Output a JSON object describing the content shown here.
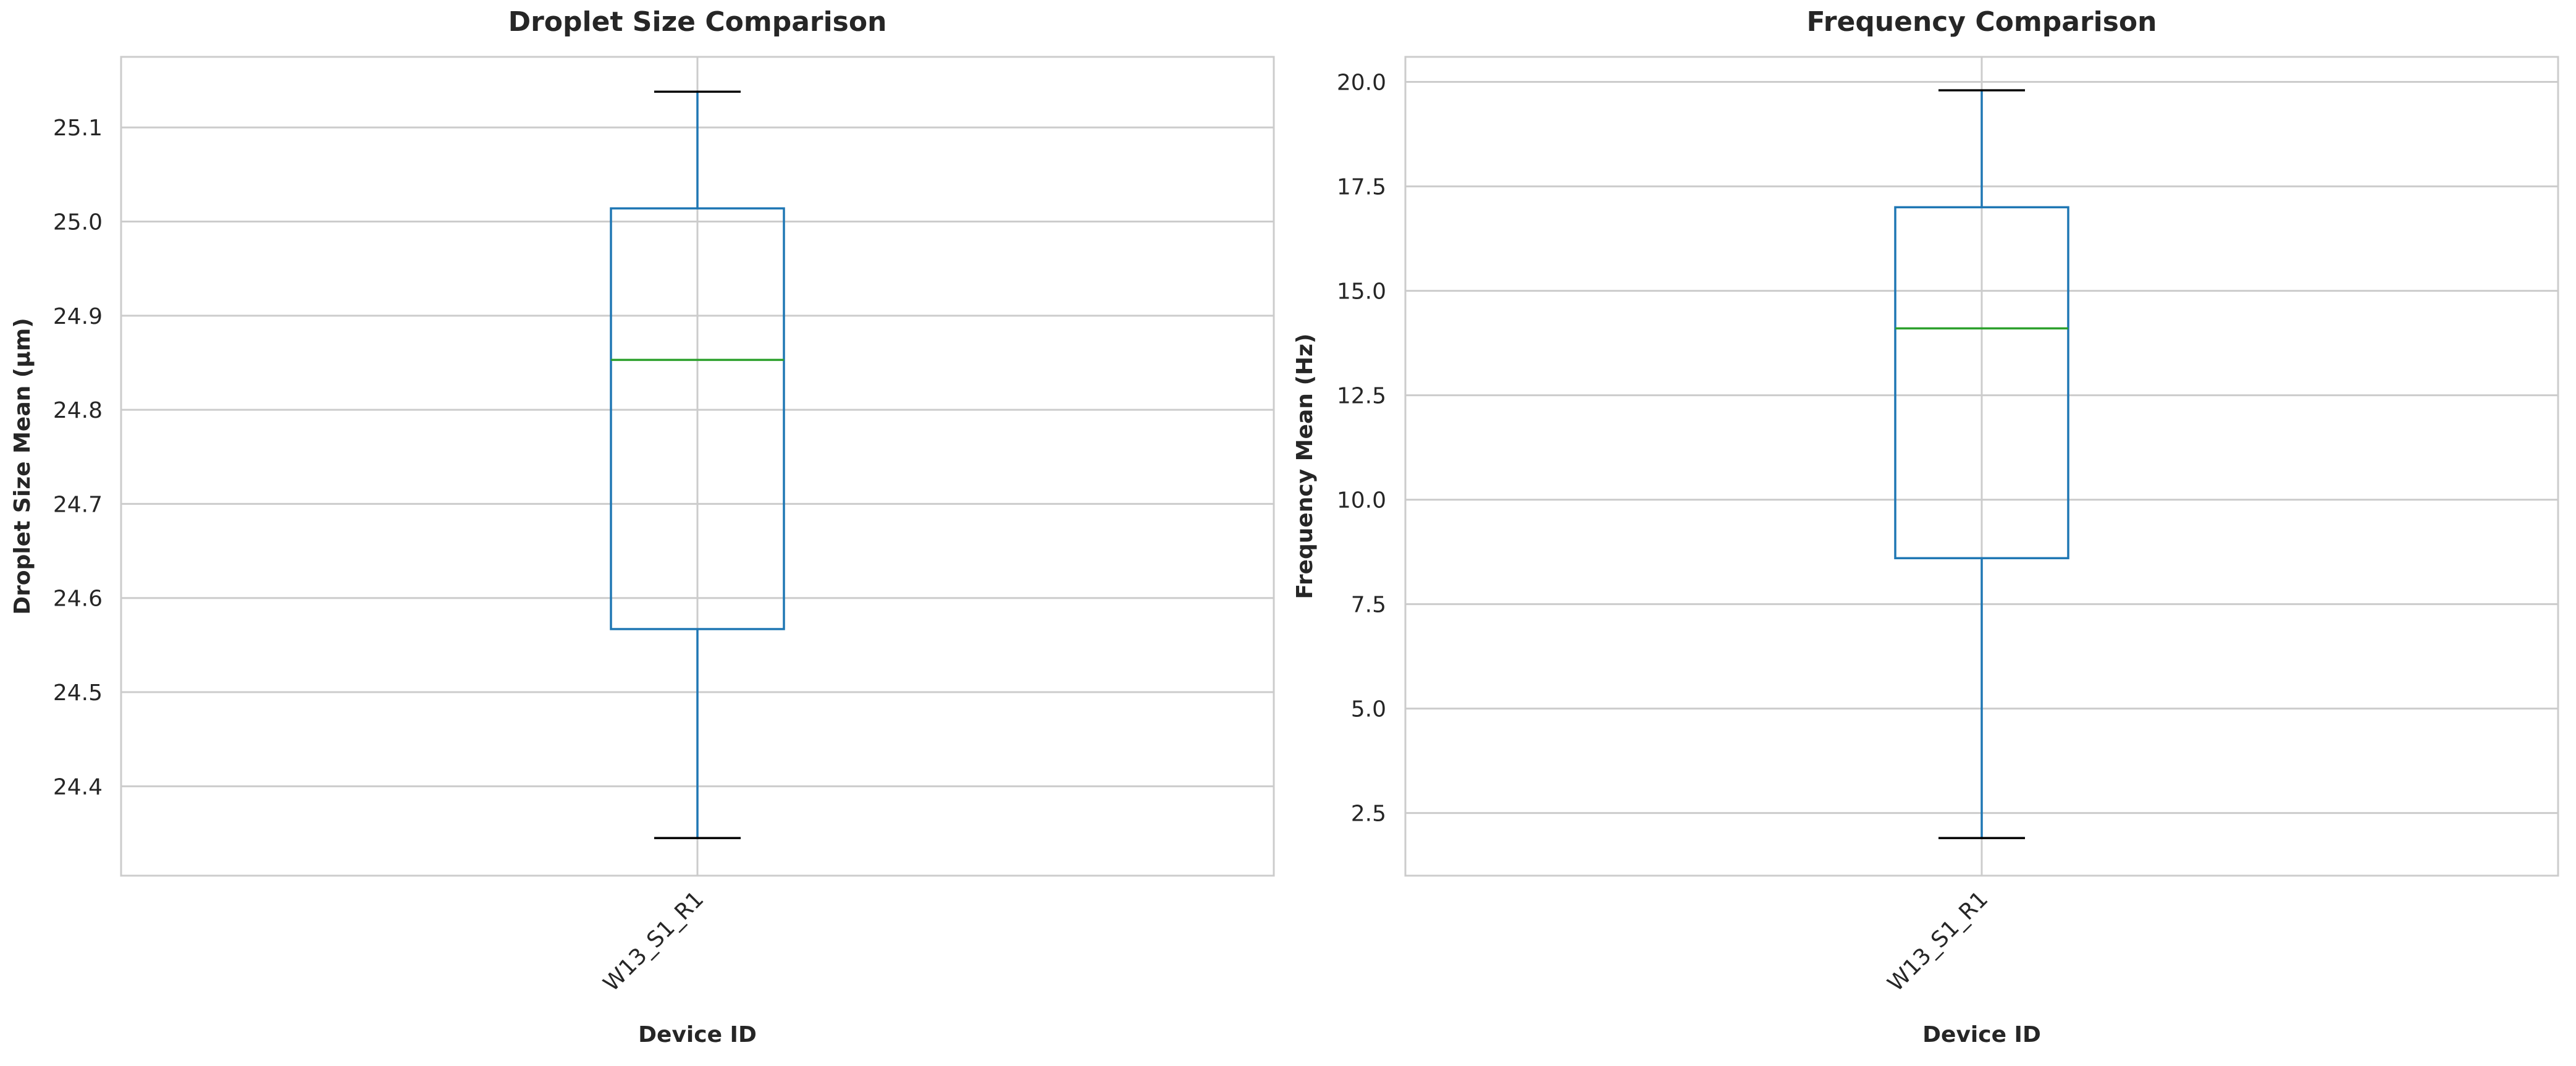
{
  "chart_data": [
    {
      "type": "box",
      "title": "Droplet Size Comparison",
      "xlabel": "Device ID",
      "ylabel": "Droplet Size Mean (µm)",
      "categories": [
        "W13_S1_R1"
      ],
      "boxes": [
        {
          "category": "W13_S1_R1",
          "whisker_low": 24.345,
          "q1": 24.567,
          "median": 24.853,
          "q3": 25.014,
          "whisker_high": 25.138
        }
      ],
      "ylim": [
        24.305,
        25.175
      ],
      "yticks": [
        "24.4",
        "24.5",
        "24.6",
        "24.7",
        "24.8",
        "24.9",
        "25.0",
        "25.1"
      ],
      "grid": true
    },
    {
      "type": "box",
      "title": "Frequency Comparison",
      "xlabel": "Device ID",
      "ylabel": "Frequency Mean (Hz)",
      "categories": [
        "W13_S1_R1"
      ],
      "boxes": [
        {
          "category": "W13_S1_R1",
          "whisker_low": 1.9,
          "q1": 8.6,
          "median": 14.1,
          "q3": 17.0,
          "whisker_high": 19.8
        }
      ],
      "ylim": [
        1.0,
        20.6
      ],
      "yticks": [
        "2.5",
        "5.0",
        "7.5",
        "10.0",
        "12.5",
        "15.0",
        "17.5",
        "20.0"
      ],
      "grid": true
    }
  ],
  "colors": {
    "box": "#1f77b4",
    "median": "#2ca02c",
    "caps": "#000000",
    "grid": "#cccccc",
    "frame": "#cccccc"
  }
}
